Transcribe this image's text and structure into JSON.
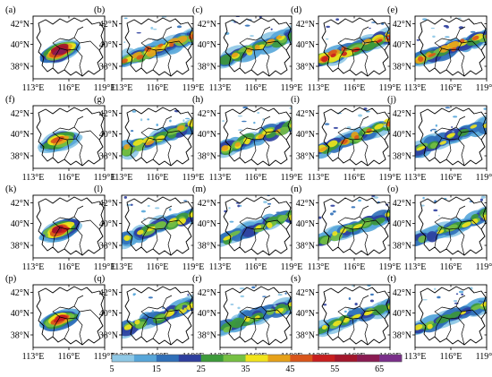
{
  "lon_ticks": [
    "113°E",
    "116°E",
    "119°E"
  ],
  "lat_ticks": [
    "42°N",
    "40°N",
    "38°N"
  ],
  "colorbar": {
    "labels": [
      "5",
      "15",
      "25",
      "35",
      "45",
      "55",
      "65"
    ],
    "colors": [
      "#8ec8e6",
      "#57a6d9",
      "#2f6fb8",
      "#2e3f9e",
      "#3d9b3a",
      "#76c043",
      "#f1e41c",
      "#e6a119",
      "#d9551a",
      "#c81e1e",
      "#a3162b",
      "#8a1b52",
      "#7a2f8a"
    ]
  },
  "map_style": {
    "outline": "#000000",
    "panel_bg": "#ffffff"
  },
  "panels": [
    {
      "label": "(a)",
      "type": "A",
      "intensity": 0.95
    },
    {
      "label": "(b)",
      "type": "B",
      "intensity": 0.7
    },
    {
      "label": "(c)",
      "type": "B",
      "intensity": 0.6
    },
    {
      "label": "(d)",
      "type": "B",
      "intensity": 0.75
    },
    {
      "label": "(e)",
      "type": "B",
      "intensity": 0.7
    },
    {
      "label": "(f)",
      "type": "A",
      "intensity": 0.7
    },
    {
      "label": "(g)",
      "type": "B",
      "intensity": 0.6
    },
    {
      "label": "(h)",
      "type": "B",
      "intensity": 0.6
    },
    {
      "label": "(i)",
      "type": "B",
      "intensity": 0.7
    },
    {
      "label": "(j)",
      "type": "B",
      "intensity": 0.55
    },
    {
      "label": "(k)",
      "type": "A",
      "intensity": 0.85
    },
    {
      "label": "(l)",
      "type": "B",
      "intensity": 0.5
    },
    {
      "label": "(m)",
      "type": "B",
      "intensity": 0.55
    },
    {
      "label": "(n)",
      "type": "B",
      "intensity": 0.55
    },
    {
      "label": "(o)",
      "type": "B",
      "intensity": 0.55
    },
    {
      "label": "(p)",
      "type": "A",
      "intensity": 0.75
    },
    {
      "label": "(q)",
      "type": "B",
      "intensity": 0.5
    },
    {
      "label": "(r)",
      "type": "B",
      "intensity": 0.5
    },
    {
      "label": "(s)",
      "type": "B",
      "intensity": 0.55
    },
    {
      "label": "(t)",
      "type": "B",
      "intensity": 0.55
    }
  ]
}
